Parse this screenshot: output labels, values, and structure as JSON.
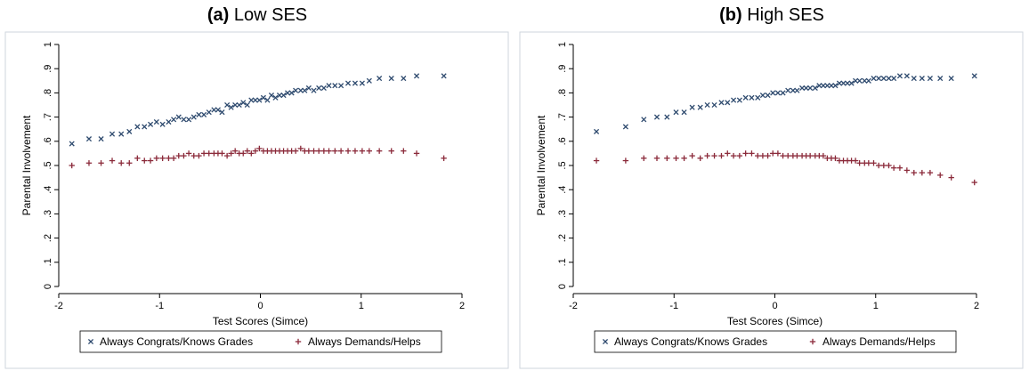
{
  "colors": {
    "congrats": "#2e4a6e",
    "demands": "#8b2a3a",
    "frame": "#cfd6dd",
    "axis": "#000000"
  },
  "chart_data": [
    {
      "type": "scatter",
      "tag": "(a)",
      "title": "Low SES",
      "xlabel": "Test Scores (Simce)",
      "ylabel": "Parental Involvement",
      "xlim": [
        -2,
        2
      ],
      "ylim": [
        0,
        1
      ],
      "xticks": [
        -2,
        -1,
        0,
        1,
        2
      ],
      "xtick_labels": [
        "-2",
        "-1",
        "0",
        "1",
        "2"
      ],
      "yticks": [
        0,
        0.1,
        0.2,
        0.3,
        0.4,
        0.5,
        0.6,
        0.7,
        0.8,
        0.9,
        1
      ],
      "ytick_labels": [
        "0",
        ".1",
        ".2",
        ".3",
        ".4",
        ".5",
        ".6",
        ".7",
        ".8",
        ".9",
        "1"
      ],
      "grid": false,
      "legend_position": "bottom",
      "series": [
        {
          "name": "Always Congrats/Knows Grades",
          "marker": "x",
          "x": [
            -1.87,
            -1.7,
            -1.58,
            -1.47,
            -1.38,
            -1.3,
            -1.22,
            -1.15,
            -1.09,
            -1.03,
            -0.97,
            -0.91,
            -0.86,
            -0.81,
            -0.76,
            -0.71,
            -0.66,
            -0.61,
            -0.56,
            -0.51,
            -0.46,
            -0.42,
            -0.38,
            -0.33,
            -0.29,
            -0.25,
            -0.21,
            -0.17,
            -0.13,
            -0.09,
            -0.05,
            -0.01,
            0.03,
            0.07,
            0.11,
            0.15,
            0.19,
            0.23,
            0.27,
            0.31,
            0.35,
            0.4,
            0.44,
            0.48,
            0.53,
            0.58,
            0.63,
            0.68,
            0.74,
            0.8,
            0.87,
            0.94,
            1.01,
            1.08,
            1.18,
            1.3,
            1.42,
            1.55,
            1.82
          ],
          "y": [
            0.59,
            0.61,
            0.61,
            0.63,
            0.63,
            0.64,
            0.66,
            0.66,
            0.67,
            0.68,
            0.67,
            0.68,
            0.69,
            0.7,
            0.69,
            0.69,
            0.7,
            0.71,
            0.71,
            0.72,
            0.73,
            0.73,
            0.72,
            0.75,
            0.74,
            0.75,
            0.75,
            0.76,
            0.75,
            0.77,
            0.77,
            0.77,
            0.78,
            0.77,
            0.79,
            0.78,
            0.79,
            0.79,
            0.8,
            0.8,
            0.81,
            0.81,
            0.81,
            0.82,
            0.81,
            0.82,
            0.82,
            0.83,
            0.83,
            0.83,
            0.84,
            0.84,
            0.84,
            0.85,
            0.86,
            0.86,
            0.86,
            0.87,
            0.87
          ]
        },
        {
          "name": "Always Demands/Helps",
          "marker": "+",
          "x": [
            -1.87,
            -1.7,
            -1.58,
            -1.47,
            -1.38,
            -1.3,
            -1.22,
            -1.15,
            -1.09,
            -1.03,
            -0.97,
            -0.91,
            -0.86,
            -0.81,
            -0.76,
            -0.71,
            -0.66,
            -0.61,
            -0.56,
            -0.51,
            -0.46,
            -0.42,
            -0.38,
            -0.33,
            -0.29,
            -0.25,
            -0.21,
            -0.17,
            -0.13,
            -0.09,
            -0.05,
            -0.01,
            0.03,
            0.07,
            0.11,
            0.15,
            0.19,
            0.23,
            0.27,
            0.31,
            0.35,
            0.4,
            0.44,
            0.48,
            0.53,
            0.58,
            0.63,
            0.68,
            0.74,
            0.8,
            0.87,
            0.94,
            1.01,
            1.08,
            1.18,
            1.3,
            1.42,
            1.55,
            1.82
          ],
          "y": [
            0.5,
            0.51,
            0.51,
            0.52,
            0.51,
            0.51,
            0.53,
            0.52,
            0.52,
            0.53,
            0.53,
            0.53,
            0.53,
            0.54,
            0.54,
            0.55,
            0.54,
            0.54,
            0.55,
            0.55,
            0.55,
            0.55,
            0.55,
            0.54,
            0.55,
            0.56,
            0.55,
            0.55,
            0.56,
            0.55,
            0.56,
            0.57,
            0.56,
            0.56,
            0.56,
            0.56,
            0.56,
            0.56,
            0.56,
            0.56,
            0.56,
            0.57,
            0.56,
            0.56,
            0.56,
            0.56,
            0.56,
            0.56,
            0.56,
            0.56,
            0.56,
            0.56,
            0.56,
            0.56,
            0.56,
            0.56,
            0.56,
            0.55,
            0.53
          ]
        }
      ]
    },
    {
      "type": "scatter",
      "tag": "(b)",
      "title": "High SES",
      "xlabel": "Test Scores (Simce)",
      "ylabel": "Parental Involvement",
      "xlim": [
        -2,
        2
      ],
      "ylim": [
        0,
        1
      ],
      "xticks": [
        -2,
        -1,
        0,
        1,
        2
      ],
      "xtick_labels": [
        "-2",
        "-1",
        "0",
        "1",
        "2"
      ],
      "yticks": [
        0,
        0.1,
        0.2,
        0.3,
        0.4,
        0.5,
        0.6,
        0.7,
        0.8,
        0.9,
        1
      ],
      "ytick_labels": [
        "0",
        ".1",
        ".2",
        ".3",
        ".4",
        ".5",
        ".6",
        ".7",
        ".8",
        ".9",
        "1"
      ],
      "grid": false,
      "legend_position": "bottom",
      "series": [
        {
          "name": "Always Congrats/Knows Grades",
          "marker": "x",
          "x": [
            -1.77,
            -1.48,
            -1.3,
            -1.17,
            -1.07,
            -0.98,
            -0.9,
            -0.82,
            -0.74,
            -0.67,
            -0.6,
            -0.53,
            -0.47,
            -0.41,
            -0.35,
            -0.29,
            -0.23,
            -0.17,
            -0.12,
            -0.07,
            -0.02,
            0.03,
            0.08,
            0.13,
            0.18,
            0.22,
            0.27,
            0.31,
            0.35,
            0.4,
            0.44,
            0.48,
            0.52,
            0.56,
            0.6,
            0.64,
            0.68,
            0.72,
            0.76,
            0.8,
            0.84,
            0.89,
            0.93,
            0.98,
            1.03,
            1.08,
            1.13,
            1.18,
            1.24,
            1.31,
            1.38,
            1.46,
            1.54,
            1.64,
            1.75,
            1.98
          ],
          "y": [
            0.64,
            0.66,
            0.69,
            0.7,
            0.7,
            0.72,
            0.72,
            0.74,
            0.74,
            0.75,
            0.75,
            0.76,
            0.76,
            0.77,
            0.77,
            0.78,
            0.78,
            0.78,
            0.79,
            0.79,
            0.8,
            0.8,
            0.8,
            0.81,
            0.81,
            0.81,
            0.82,
            0.82,
            0.82,
            0.82,
            0.83,
            0.83,
            0.83,
            0.83,
            0.83,
            0.84,
            0.84,
            0.84,
            0.84,
            0.85,
            0.85,
            0.85,
            0.85,
            0.86,
            0.86,
            0.86,
            0.86,
            0.86,
            0.87,
            0.87,
            0.86,
            0.86,
            0.86,
            0.86,
            0.86,
            0.87
          ]
        },
        {
          "name": "Always Demands/Helps",
          "marker": "+",
          "x": [
            -1.77,
            -1.48,
            -1.3,
            -1.17,
            -1.07,
            -0.98,
            -0.9,
            -0.82,
            -0.74,
            -0.67,
            -0.6,
            -0.53,
            -0.47,
            -0.41,
            -0.35,
            -0.29,
            -0.23,
            -0.17,
            -0.12,
            -0.07,
            -0.02,
            0.03,
            0.08,
            0.13,
            0.18,
            0.22,
            0.27,
            0.31,
            0.35,
            0.4,
            0.44,
            0.48,
            0.52,
            0.56,
            0.6,
            0.64,
            0.68,
            0.72,
            0.76,
            0.8,
            0.84,
            0.89,
            0.93,
            0.98,
            1.03,
            1.08,
            1.13,
            1.18,
            1.24,
            1.31,
            1.38,
            1.46,
            1.54,
            1.64,
            1.75,
            1.98
          ],
          "y": [
            0.52,
            0.52,
            0.53,
            0.53,
            0.53,
            0.53,
            0.53,
            0.54,
            0.53,
            0.54,
            0.54,
            0.54,
            0.55,
            0.54,
            0.54,
            0.55,
            0.55,
            0.54,
            0.54,
            0.54,
            0.55,
            0.55,
            0.54,
            0.54,
            0.54,
            0.54,
            0.54,
            0.54,
            0.54,
            0.54,
            0.54,
            0.54,
            0.53,
            0.53,
            0.53,
            0.52,
            0.52,
            0.52,
            0.52,
            0.52,
            0.51,
            0.51,
            0.51,
            0.51,
            0.5,
            0.5,
            0.5,
            0.49,
            0.49,
            0.48,
            0.47,
            0.47,
            0.47,
            0.46,
            0.45,
            0.43
          ]
        }
      ]
    }
  ]
}
